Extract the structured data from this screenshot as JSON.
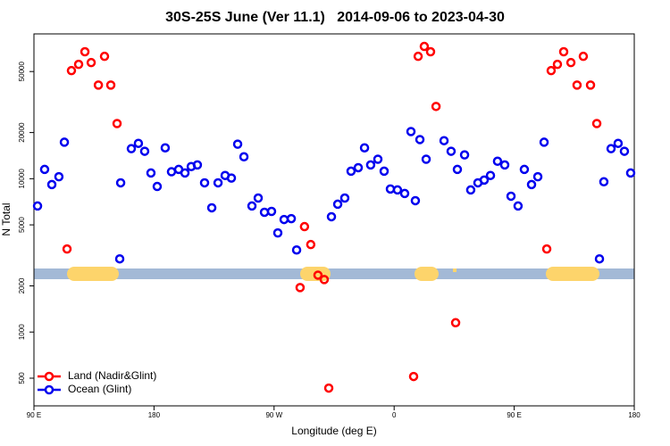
{
  "chart_data": {
    "type": "scatter",
    "title": "30S-25S June (Ver 11.1)   2014-09-06 to 2023-04-30",
    "x_label": "Longitude (deg E)",
    "y_label": "N Total",
    "y_scale": "log",
    "legend": "lower left",
    "xlim": [
      90,
      540
    ],
    "ylim": [
      330,
      88000
    ],
    "xticks": [
      {
        "value": 90,
        "label": "90 E"
      },
      180,
      {
        "value": 270,
        "label": "90 W"
      },
      {
        "value": 360,
        "label": "0"
      },
      {
        "value": 450,
        "label": "90 E"
      },
      {
        "value": 540,
        "label": "180"
      }
    ],
    "yticks": [
      500,
      1000,
      2000,
      5000,
      10000,
      20000,
      50000
    ],
    "series": [
      {
        "name": "Land (Nadir&Glint)",
        "color": "#ff0000",
        "x": [
          114.8,
          118.1,
          123.5,
          128.2,
          132.9,
          138.3,
          142.9,
          147.6,
          152.3,
          289.5,
          292.8,
          297.5,
          302.9,
          307.6,
          311.0,
          374.6,
          378.0,
          382.6,
          387.3,
          391.4,
          406.1,
          474.4,
          477.7,
          482.4,
          487.1,
          492.5,
          497.1,
          501.8,
          507.2,
          511.9
        ],
        "values": [
          3480,
          50700,
          55700,
          67300,
          57200,
          40800,
          62800,
          40800,
          22900,
          1950,
          4870,
          3720,
          2350,
          2200,
          431,
          513,
          62800,
          72900,
          67300,
          29600,
          1150,
          3480,
          50700,
          55700,
          67300,
          57200,
          40800,
          62800,
          40800,
          22900
        ]
      },
      {
        "name": "Ocean (Glint)",
        "color": "#0000ee",
        "x": [
          92.7,
          98.0,
          103.4,
          108.7,
          112.8,
          154.3,
          155.0,
          163.0,
          168.3,
          173.0,
          177.7,
          182.4,
          188.4,
          193.1,
          198.5,
          203.2,
          207.9,
          212.5,
          217.9,
          223.3,
          228.0,
          233.3,
          238.0,
          242.7,
          247.4,
          253.4,
          258.1,
          262.8,
          268.1,
          272.8,
          277.5,
          282.9,
          286.9,
          313.0,
          317.7,
          323.0,
          327.7,
          333.1,
          337.8,
          342.4,
          347.8,
          352.5,
          357.2,
          362.5,
          367.9,
          372.6,
          375.9,
          379.3,
          384.0,
          397.4,
          402.7,
          407.4,
          412.8,
          417.4,
          422.8,
          427.5,
          432.2,
          437.5,
          442.9,
          447.6,
          452.9,
          457.6,
          463.0,
          467.7,
          472.4,
          513.9,
          517.2,
          522.6,
          527.9,
          532.6,
          537.3
        ],
        "values": [
          6640,
          11500,
          9160,
          10300,
          17300,
          3000,
          9400,
          15700,
          17000,
          15100,
          10900,
          8900,
          15900,
          11100,
          11500,
          10900,
          12000,
          12300,
          9400,
          6460,
          9400,
          10500,
          10100,
          16800,
          13900,
          6640,
          7480,
          6040,
          6120,
          4430,
          5420,
          5490,
          3430,
          5650,
          6820,
          7480,
          11200,
          11800,
          15900,
          12300,
          13400,
          11200,
          8570,
          8450,
          8010,
          20300,
          7190,
          18000,
          13400,
          17700,
          15100,
          11500,
          14300,
          8450,
          9400,
          9800,
          10500,
          13000,
          12300,
          7690,
          6640,
          11500,
          9160,
          10300,
          17300,
          3000,
          9550,
          15700,
          17000,
          15100,
          10900
        ]
      }
    ]
  }
}
